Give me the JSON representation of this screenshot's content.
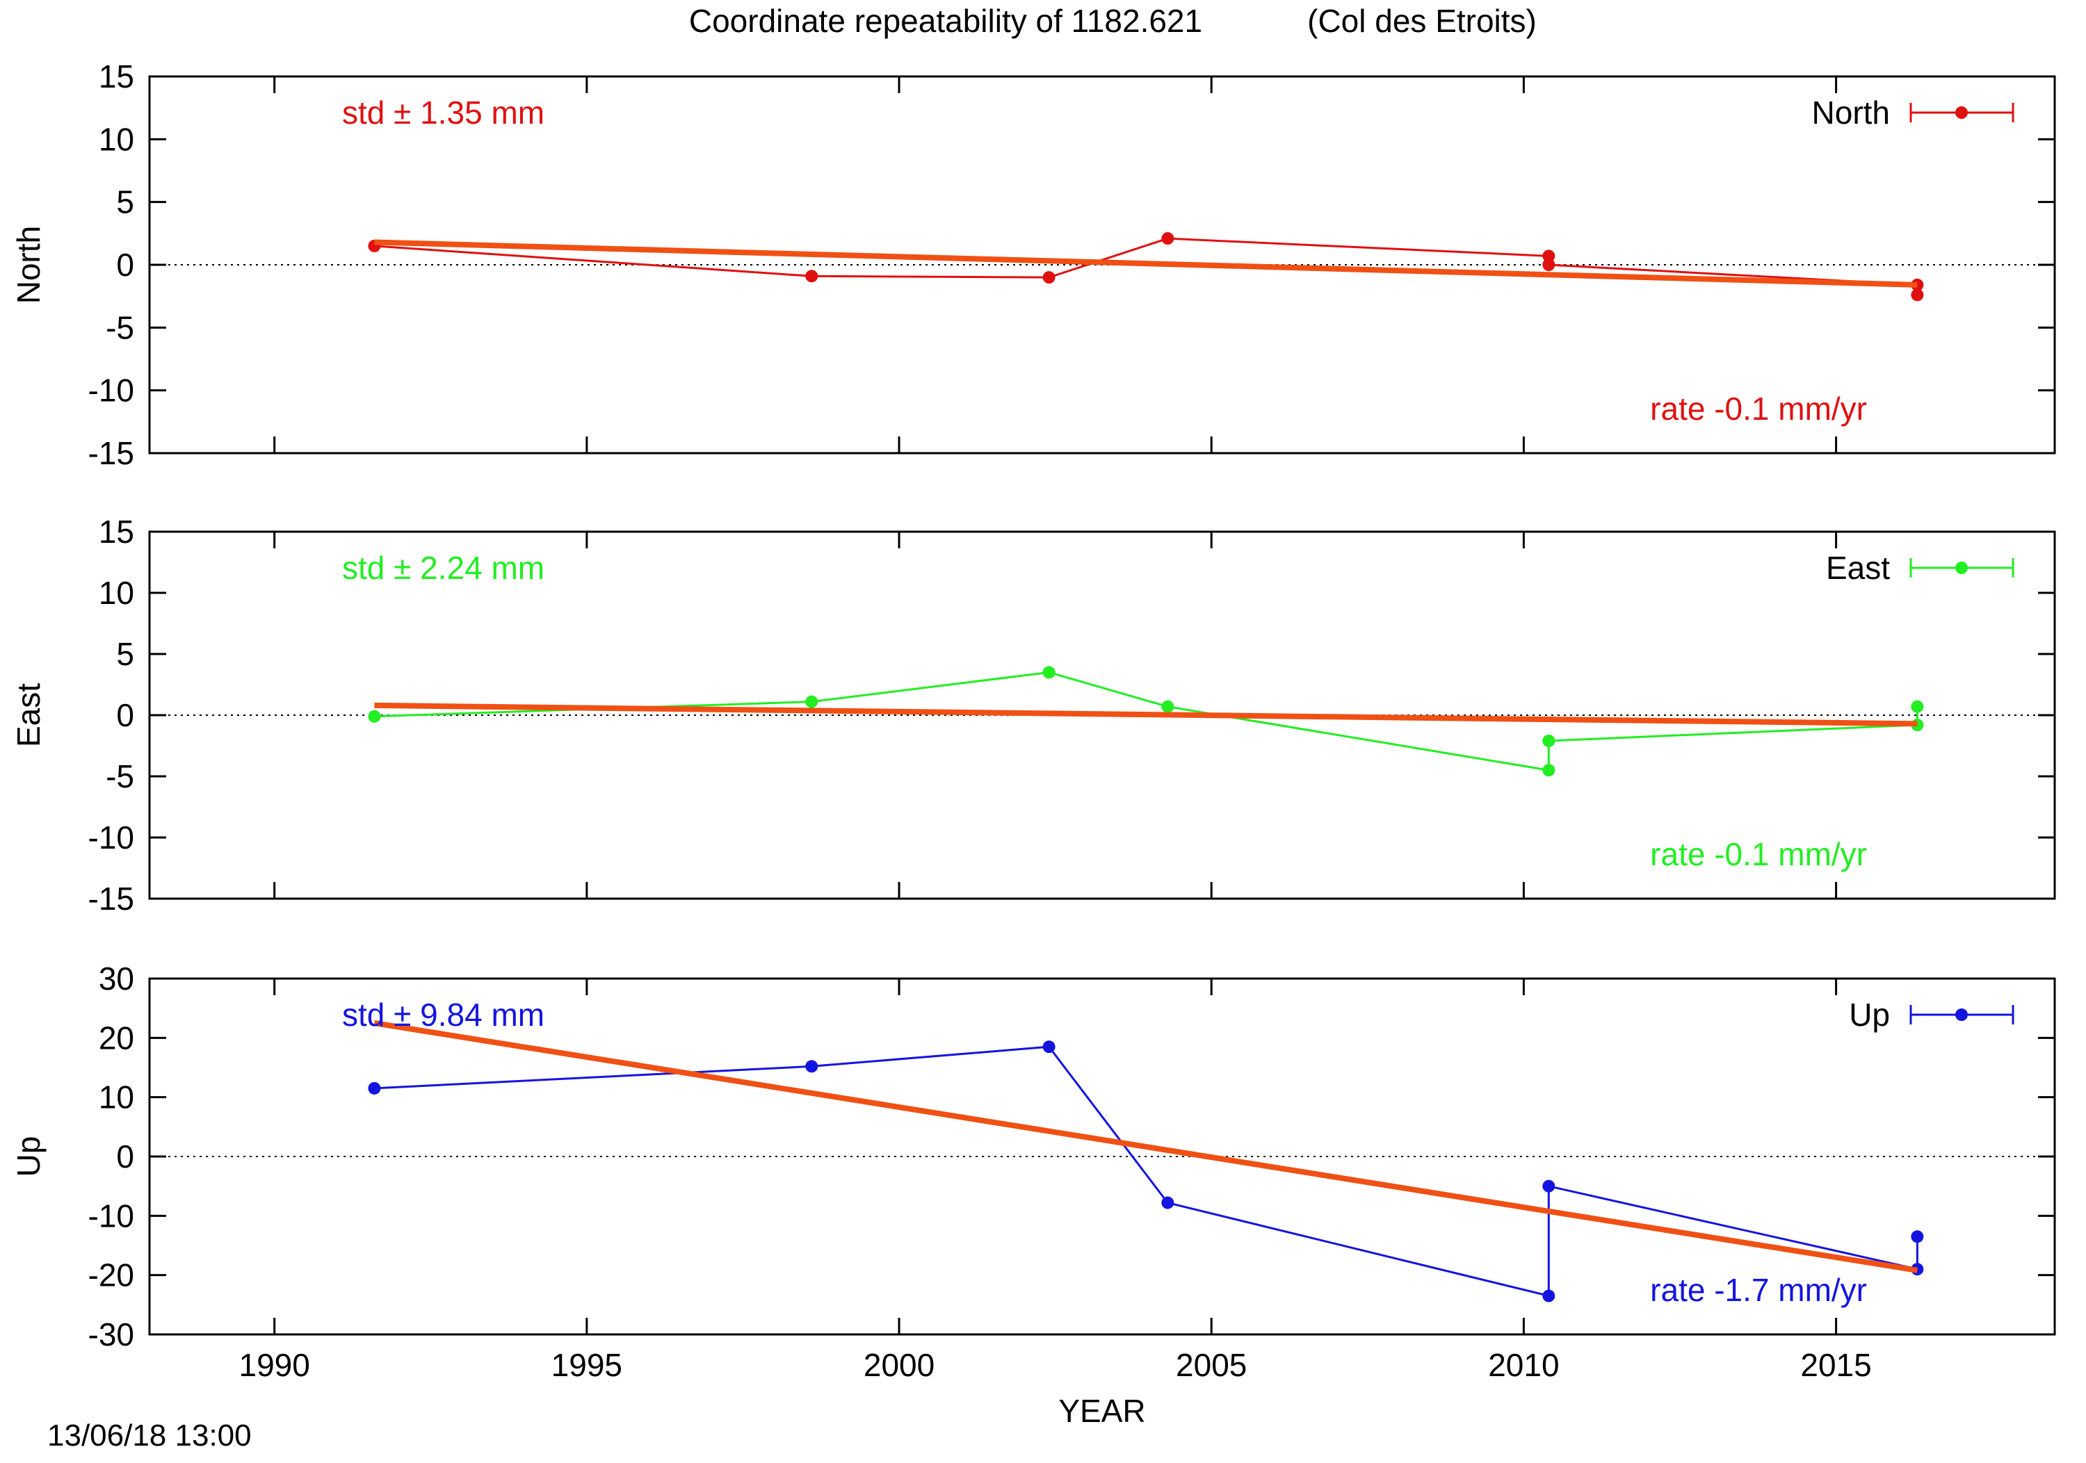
{
  "chart_data": {
    "type": "line",
    "title": "Coordinate repeatability of 1182.621",
    "subtitle": "(Col des Etroits)",
    "xlabel": "YEAR",
    "xlim": [
      1988,
      2018.5
    ],
    "xticks": [
      1990,
      1995,
      2000,
      2005,
      2010,
      2015
    ],
    "grid": false,
    "legend_position": "top-right",
    "timestamp": "13/06/18 13:00",
    "panels": [
      {
        "id": "north",
        "ylabel": "North",
        "color": "#e01010",
        "ylim": [
          -15,
          15
        ],
        "yticks": [
          -15,
          -10,
          -5,
          0,
          5,
          10,
          15
        ],
        "legend": "North",
        "std_label": "std ± 1.35 mm",
        "rate_label": "rate -0.1 mm/yr",
        "series": [
          {
            "x": [
              1991.6,
              1998.6,
              2002.4,
              2004.3,
              2010.4,
              2010.4,
              2016.3,
              2016.3
            ],
            "y": [
              1.5,
              -0.9,
              -1.0,
              2.1,
              0.7,
              0.0,
              -1.6,
              -2.4
            ]
          }
        ],
        "trend": {
          "x": [
            1991.6,
            2016.3
          ],
          "y": [
            1.8,
            -1.6
          ]
        }
      },
      {
        "id": "east",
        "ylabel": "East",
        "color": "#22ee22",
        "ylim": [
          -15,
          15
        ],
        "yticks": [
          -15,
          -10,
          -5,
          0,
          5,
          10,
          15
        ],
        "legend": "East",
        "std_label": "std ± 2.24 mm",
        "rate_label": "rate -0.1 mm/yr",
        "series": [
          {
            "x": [
              1991.6,
              1998.6,
              2002.4,
              2004.3,
              2010.4,
              2010.4,
              2016.3,
              2016.3
            ],
            "y": [
              -0.1,
              1.1,
              3.5,
              0.7,
              -4.5,
              -2.1,
              -0.8,
              0.7
            ]
          }
        ],
        "trend": {
          "x": [
            1991.6,
            2016.3
          ],
          "y": [
            0.8,
            -0.7
          ]
        }
      },
      {
        "id": "up",
        "ylabel": "Up",
        "color": "#1414e0",
        "ylim": [
          -30,
          30
        ],
        "yticks": [
          -30,
          -20,
          -10,
          0,
          10,
          20,
          30
        ],
        "legend": "Up",
        "std_label": "std ± 9.84 mm",
        "rate_label": "rate -1.7 mm/yr",
        "series": [
          {
            "x": [
              1991.6,
              1998.6,
              2002.4,
              2004.3,
              2010.4,
              2010.4,
              2016.3,
              2016.3
            ],
            "y": [
              11.5,
              15.2,
              18.5,
              -7.8,
              -23.5,
              -5.0,
              -19.0,
              -13.5
            ]
          }
        ],
        "trend": {
          "x": [
            1991.6,
            2016.3
          ],
          "y": [
            22.5,
            -19.2
          ]
        }
      }
    ],
    "trend_color": "#f05014"
  }
}
